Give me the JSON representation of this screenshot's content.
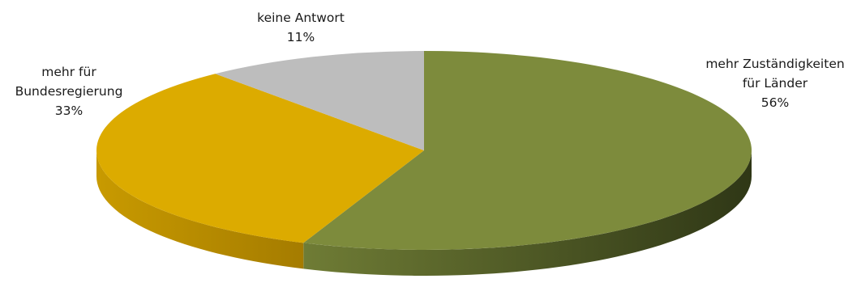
{
  "chart_data": {
    "type": "pie",
    "title": "",
    "style": "3d-tilted",
    "start_angle_deg": -90,
    "direction": "clockwise",
    "slices": [
      {
        "label_lines": [
          "mehr Zuständigkeiten",
          "für Länder"
        ],
        "value": 56,
        "value_label": "56%",
        "color": "#7d8b3c",
        "side_color_light": "#6f7c35",
        "side_color_dark": "#2f3716"
      },
      {
        "label_lines": [
          "mehr für",
          "Bundesregierung"
        ],
        "value": 33,
        "value_label": "33%",
        "color": "#dcab00",
        "side_color_light": "#c89a00",
        "side_color_dark": "#a57c00"
      },
      {
        "label_lines": [
          "keine Antwort"
        ],
        "value": 11,
        "value_label": "11%",
        "color": "#bdbdbd",
        "side_color_light": "#a8a8a8",
        "side_color_dark": "#8a8a8a"
      }
    ]
  }
}
